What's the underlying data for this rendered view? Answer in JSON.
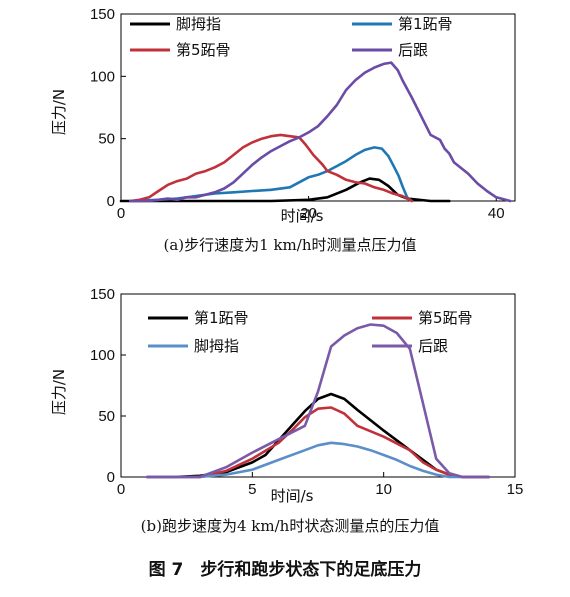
{
  "figure_caption": "图 7　步行和跑步状态下的足底压力",
  "chart_data": [
    {
      "type": "line",
      "caption": "(a)步行速度为1 km/h时测量点压力值",
      "xlabel": "时间/s",
      "ylabel": "压力/N",
      "xlim": [
        0,
        42
      ],
      "ylim": [
        0,
        150
      ],
      "xticks": [
        0,
        20,
        40
      ],
      "yticks": [
        0,
        50,
        100,
        150
      ],
      "legend_placement": "top",
      "series": [
        {
          "name": "脚拇指",
          "color": "#000000",
          "points": [
            [
              0,
              0
            ],
            [
              16,
              0
            ],
            [
              20,
              1
            ],
            [
              22,
              3
            ],
            [
              24,
              9
            ],
            [
              25.5,
              15
            ],
            [
              26.5,
              18
            ],
            [
              27.5,
              17
            ],
            [
              28.5,
              12
            ],
            [
              29.5,
              5
            ],
            [
              30.5,
              2
            ],
            [
              33,
              0
            ],
            [
              35,
              0
            ]
          ]
        },
        {
          "name": "第1跖骨",
          "color": "#1f77b4",
          "points": [
            [
              1,
              0
            ],
            [
              4,
              1
            ],
            [
              6,
              2
            ],
            [
              8,
              4
            ],
            [
              10,
              6
            ],
            [
              12,
              7
            ],
            [
              14,
              8
            ],
            [
              16,
              9
            ],
            [
              18,
              11
            ],
            [
              19,
              15
            ],
            [
              20,
              19
            ],
            [
              21,
              21
            ],
            [
              22,
              24
            ],
            [
              23,
              28
            ],
            [
              24,
              32
            ],
            [
              25,
              37
            ],
            [
              26,
              41
            ],
            [
              27,
              43
            ],
            [
              27.8,
              42
            ],
            [
              28.5,
              36
            ],
            [
              29,
              29
            ],
            [
              29.6,
              20
            ],
            [
              30,
              12
            ],
            [
              30.5,
              3
            ],
            [
              31,
              0
            ]
          ]
        },
        {
          "name": "第5跖骨",
          "color": "#c0313a",
          "points": [
            [
              1,
              0
            ],
            [
              2,
              1
            ],
            [
              3,
              3
            ],
            [
              4,
              8
            ],
            [
              5,
              13
            ],
            [
              6,
              16
            ],
            [
              7,
              18
            ],
            [
              8,
              22
            ],
            [
              9,
              24
            ],
            [
              10,
              27
            ],
            [
              11,
              31
            ],
            [
              12,
              37
            ],
            [
              13,
              43
            ],
            [
              14,
              47
            ],
            [
              15,
              50
            ],
            [
              16,
              52
            ],
            [
              17,
              53
            ],
            [
              18,
              52
            ],
            [
              19,
              51
            ],
            [
              19.7,
              45
            ],
            [
              20.5,
              37
            ],
            [
              21.5,
              29
            ],
            [
              22,
              24
            ],
            [
              23,
              21
            ],
            [
              24,
              17
            ],
            [
              25,
              15
            ],
            [
              26,
              14
            ],
            [
              27,
              11
            ],
            [
              28,
              9
            ],
            [
              29,
              6
            ],
            [
              30,
              4
            ],
            [
              31,
              0
            ]
          ]
        },
        {
          "name": "后跟",
          "color": "#6a4ba6",
          "points": [
            [
              1,
              0
            ],
            [
              3,
              0
            ],
            [
              4,
              1
            ],
            [
              5,
              2
            ],
            [
              6,
              1
            ],
            [
              7,
              3
            ],
            [
              8,
              3
            ],
            [
              9,
              5
            ],
            [
              10,
              7
            ],
            [
              11,
              10
            ],
            [
              12,
              15
            ],
            [
              13,
              22
            ],
            [
              14,
              29
            ],
            [
              15,
              35
            ],
            [
              16,
              40
            ],
            [
              17,
              44
            ],
            [
              18,
              48
            ],
            [
              19,
              51
            ],
            [
              20,
              55
            ],
            [
              21,
              60
            ],
            [
              22,
              68
            ],
            [
              23,
              77
            ],
            [
              24,
              89
            ],
            [
              25,
              97
            ],
            [
              26,
              103
            ],
            [
              27,
              107
            ],
            [
              28,
              110
            ],
            [
              28.8,
              111
            ],
            [
              29.5,
              105
            ],
            [
              30,
              97
            ],
            [
              31,
              83
            ],
            [
              32,
              68
            ],
            [
              33,
              53
            ],
            [
              34,
              49
            ],
            [
              34.5,
              42
            ],
            [
              35,
              38
            ],
            [
              35.5,
              31
            ],
            [
              36,
              28
            ],
            [
              37,
              22
            ],
            [
              38,
              14
            ],
            [
              39,
              8
            ],
            [
              40,
              3
            ],
            [
              41,
              1
            ],
            [
              41.5,
              0
            ]
          ]
        }
      ]
    },
    {
      "type": "line",
      "caption": "(b)跑步速度为4 km/h时状态测量点的压力值",
      "xlabel": "时间/s",
      "ylabel": "压力/N",
      "xlim": [
        0,
        15
      ],
      "ylim": [
        0,
        150
      ],
      "xticks": [
        0,
        5,
        10,
        15
      ],
      "yticks": [
        0,
        50,
        100,
        150
      ],
      "legend_placement": "top",
      "series": [
        {
          "name": "第1跖骨",
          "color": "#000000",
          "points": [
            [
              1,
              0
            ],
            [
              2,
              0
            ],
            [
              3,
              1
            ],
            [
              4,
              4
            ],
            [
              5,
              12
            ],
            [
              5.5,
              18
            ],
            [
              6,
              30
            ],
            [
              6.5,
              42
            ],
            [
              7,
              54
            ],
            [
              7.5,
              64
            ],
            [
              8,
              68
            ],
            [
              8.5,
              64
            ],
            [
              9,
              55
            ],
            [
              10,
              38
            ],
            [
              11,
              22
            ],
            [
              11.5,
              14
            ],
            [
              12,
              6
            ],
            [
              12.5,
              2
            ],
            [
              13,
              0
            ],
            [
              14,
              0
            ]
          ]
        },
        {
          "name": "第5跖骨",
          "color": "#c0313a",
          "points": [
            [
              1,
              0
            ],
            [
              3,
              0
            ],
            [
              4,
              5
            ],
            [
              5,
              15
            ],
            [
              6,
              28
            ],
            [
              6.5,
              38
            ],
            [
              7,
              49
            ],
            [
              7.5,
              56
            ],
            [
              8,
              57
            ],
            [
              8.5,
              52
            ],
            [
              9,
              42
            ],
            [
              10,
              33
            ],
            [
              11,
              22
            ],
            [
              11.5,
              12
            ],
            [
              12,
              6
            ],
            [
              12.5,
              2
            ],
            [
              13,
              0
            ],
            [
              14,
              0
            ]
          ]
        },
        {
          "name": "脚拇指",
          "color": "#5a8fc9",
          "points": [
            [
              1,
              0
            ],
            [
              3,
              0
            ],
            [
              4,
              2
            ],
            [
              5,
              6
            ],
            [
              6,
              14
            ],
            [
              7,
              22
            ],
            [
              7.5,
              26
            ],
            [
              8,
              28
            ],
            [
              8.5,
              27
            ],
            [
              9,
              25
            ],
            [
              9.5,
              22
            ],
            [
              10,
              18
            ],
            [
              10.5,
              14
            ],
            [
              11,
              9
            ],
            [
              11.5,
              5
            ],
            [
              12,
              2
            ],
            [
              12.5,
              0
            ],
            [
              13,
              0
            ]
          ]
        },
        {
          "name": "后跟",
          "color": "#7a5aa8",
          "points": [
            [
              1,
              0
            ],
            [
              3,
              0
            ],
            [
              4,
              8
            ],
            [
              5,
              20
            ],
            [
              6,
              31
            ],
            [
              7,
              42
            ],
            [
              7.5,
              70
            ],
            [
              8,
              107
            ],
            [
              8.5,
              116
            ],
            [
              9,
              122
            ],
            [
              9.5,
              125
            ],
            [
              10,
              124
            ],
            [
              10.5,
              118
            ],
            [
              11,
              105
            ],
            [
              11.5,
              60
            ],
            [
              12,
              15
            ],
            [
              12.5,
              3
            ],
            [
              13,
              0
            ],
            [
              14,
              0
            ]
          ]
        }
      ]
    }
  ]
}
